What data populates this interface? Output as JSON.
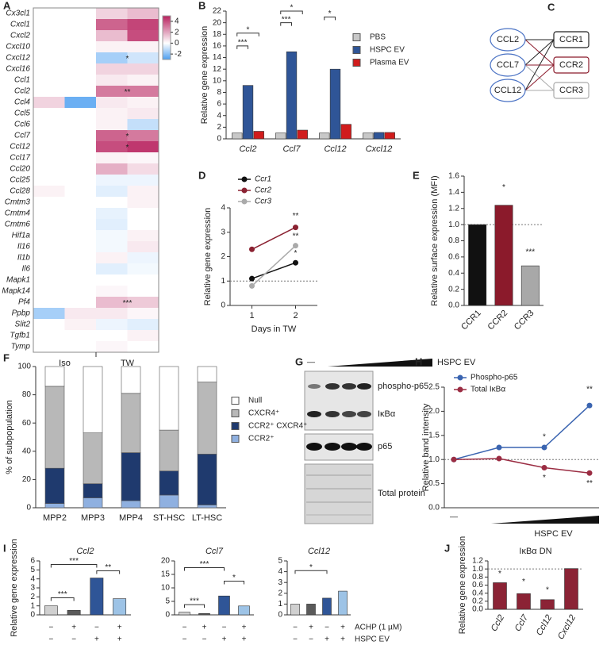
{
  "chart_data": [
    {
      "panel": "A",
      "type": "heatmap",
      "rows": [
        "Cx3cl1",
        "Cxcl1",
        "Cxcl2",
        "Cxcl10",
        "Cxcl12",
        "Cxcl16",
        "Ccl1",
        "Ccl2",
        "Ccl4",
        "Ccl5",
        "Ccl6",
        "Ccl7",
        "Ccl12",
        "Ccl17",
        "Ccl20",
        "Ccl25",
        "Ccl28",
        "Cmtm3",
        "Cmtm4",
        "Cmtm6",
        "Hif1a",
        "Il16",
        "Il1b",
        "Il6",
        "Mapk1",
        "Mapk14",
        "Pf4",
        "Ppbp",
        "Slit2",
        "Tgfb1",
        "Tymp"
      ],
      "groups": [
        "Iso",
        "TW"
      ],
      "values": [
        [
          0,
          0,
          1,
          1.5
        ],
        [
          0,
          0,
          3.5,
          4.2
        ],
        [
          0,
          0,
          1.5,
          4
        ],
        [
          0,
          0,
          0.3,
          0.3
        ],
        [
          0,
          0,
          -1.5,
          -0.8
        ],
        [
          0,
          0,
          1,
          1
        ],
        [
          0,
          0,
          0.5,
          0.3
        ],
        [
          0,
          0,
          3,
          3
        ],
        [
          1,
          -2.5,
          0.5,
          0.3
        ],
        [
          0,
          0,
          0.3,
          0.5
        ],
        [
          0,
          0,
          0.3,
          -1
        ],
        [
          0,
          0,
          3.5,
          3
        ],
        [
          0,
          0,
          4,
          4.5
        ],
        [
          0,
          0,
          0.3,
          0.2
        ],
        [
          0,
          0,
          1.8,
          0.8
        ],
        [
          0,
          0,
          -0.3,
          -0.3
        ],
        [
          0.3,
          0,
          -0.5,
          0.3
        ],
        [
          0,
          0,
          0,
          0.3
        ],
        [
          0,
          0,
          -0.4,
          0
        ],
        [
          0,
          0,
          -0.5,
          0
        ],
        [
          0,
          0,
          -0.2,
          0.3
        ],
        [
          0,
          0,
          -0.2,
          0.5
        ],
        [
          0,
          0,
          0.3,
          -0.3
        ],
        [
          0,
          0,
          -0.5,
          -0.2
        ],
        [
          0,
          0,
          0,
          0
        ],
        [
          0,
          0,
          0.2,
          0
        ],
        [
          0,
          0,
          1.5,
          1.2
        ],
        [
          -1.5,
          0.5,
          0.5,
          0.2
        ],
        [
          0,
          0.3,
          -0.3,
          -0.5
        ],
        [
          0,
          0,
          0,
          0.3
        ],
        [
          0,
          0,
          0.2,
          0
        ]
      ],
      "zlim": [
        -3,
        5
      ],
      "zticks": [
        4,
        2,
        0,
        -2
      ],
      "colors": {
        "low": "#4d9ff0",
        "mid": "#ffffff",
        "high": "#b8215e"
      },
      "annotations": [
        "*",
        "**",
        "*",
        "*",
        "***"
      ]
    },
    {
      "panel": "B",
      "type": "bar",
      "ylabel": "Relative gene expression",
      "categories": [
        "Ccl2",
        "Ccl7",
        "Ccl12",
        "Cxcl12"
      ],
      "series": [
        {
          "name": "PBS",
          "color": "#c8c8c8",
          "values": [
            1,
            1,
            1,
            1
          ]
        },
        {
          "name": "HSPC EV",
          "color": "#2f5597",
          "values": [
            9.2,
            15,
            12,
            1.1
          ]
        },
        {
          "name": "Plasma EV",
          "color": "#d01c1c",
          "values": [
            1.3,
            1.5,
            2.5,
            1.1
          ]
        }
      ],
      "ylim": [
        0,
        22
      ],
      "yticks": [
        0,
        2,
        4,
        6,
        8,
        10,
        12,
        14,
        16,
        18,
        20,
        22
      ],
      "legend": "top-right",
      "annotations": [
        "***",
        "*",
        "***",
        "*",
        "*"
      ]
    },
    {
      "panel": "C",
      "type": "diagram",
      "sources": [
        "CCL2",
        "CCL7",
        "CCL12"
      ],
      "targets": [
        "CCR1",
        "CCR2",
        "CCR3"
      ],
      "source_color": "#4a72c4",
      "target_colors": [
        "#222222",
        "#8b1a2b",
        "#aaaaaa"
      ]
    },
    {
      "panel": "D",
      "type": "line",
      "ylabel": "Relative gene expression",
      "xlabel": "Days in TW",
      "x": [
        1,
        2
      ],
      "xlim": [
        0.5,
        2.5
      ],
      "xticks": [
        1,
        2
      ],
      "ylim": [
        0,
        4
      ],
      "yticks": [
        0,
        1,
        2,
        3,
        4
      ],
      "reference_line": 1,
      "series": [
        {
          "name": "Ccr1",
          "color": "#111111",
          "values": [
            1.1,
            1.75
          ]
        },
        {
          "name": "Ccr2",
          "color": "#8b2232",
          "values": [
            2.3,
            3.2
          ]
        },
        {
          "name": "Ccr3",
          "color": "#aaaaaa",
          "values": [
            0.8,
            2.45
          ]
        }
      ],
      "annotations": [
        "**",
        "**",
        "*"
      ]
    },
    {
      "panel": "E",
      "type": "bar",
      "ylabel": "Relative surface expression (MFI)",
      "categories": [
        "CCR1",
        "CCR2",
        "CCR3"
      ],
      "values": [
        1,
        1.24,
        0.49
      ],
      "colors": [
        "#111111",
        "#8b1a2b",
        "#a8a8a8"
      ],
      "ylim": [
        0,
        1.6
      ],
      "yticks": [
        {
          "value": 0,
          "label": "0.0"
        },
        0.2,
        0.4,
        0.6,
        0.8,
        {
          "value": 1,
          "label": "1.0"
        },
        1.2,
        1.4,
        1.6
      ],
      "reference_line": 1,
      "annotations": [
        "*",
        "***"
      ]
    },
    {
      "panel": "F",
      "type": "bar",
      "stacked": true,
      "ylabel": "% of subpopulation",
      "categories": [
        "MPP2",
        "MPP3",
        "MPP4",
        "ST-HSC",
        "LT-HSC"
      ],
      "series": [
        {
          "name": "CCR2⁺",
          "color": "#8fb0e0",
          "values": [
            3,
            7,
            5,
            9,
            2
          ]
        },
        {
          "name": "CCR2⁺ CXCR4⁺",
          "color": "#1f3a6e",
          "values": [
            25,
            10,
            34,
            17,
            36
          ]
        },
        {
          "name": "CXCR4⁺",
          "color": "#b8b8b8",
          "values": [
            58,
            36,
            42,
            29,
            51
          ]
        },
        {
          "name": "Null",
          "color": "#ffffff",
          "values": [
            14,
            47,
            19,
            45,
            11
          ]
        }
      ],
      "ylim": [
        0,
        100
      ],
      "yticks": [
        0,
        20,
        40,
        60,
        80,
        100
      ],
      "legend": "right"
    },
    {
      "panel": "G",
      "type": "blot",
      "control_label": "—",
      "treatment": "HSPC EV",
      "rows": [
        "phospho-p65",
        "IκBα",
        "p65",
        "Total protein"
      ]
    },
    {
      "panel": "H",
      "type": "line",
      "ylabel": "Relative band intensity",
      "xlabel": "HSPC EV",
      "control_label": "—",
      "categories": [
        null,
        null,
        null,
        null
      ],
      "ylim": [
        0,
        2.5
      ],
      "yticks": [
        {
          "value": 0,
          "label": "0.0"
        },
        0.5,
        {
          "value": 1,
          "label": "1.0"
        },
        1.5,
        {
          "value": 2,
          "label": "2.0"
        },
        2.5
      ],
      "reference_line": 1,
      "series": [
        {
          "name": "Phospho-p65",
          "color": "#3a64b0",
          "values": [
            1,
            1.25,
            1.25,
            2.12
          ]
        },
        {
          "name": "Total IκBα",
          "color": "#9b2d43",
          "values": [
            1,
            1.02,
            0.83,
            0.72
          ]
        }
      ],
      "annotations": [
        "*",
        "**",
        "*",
        "**"
      ]
    },
    {
      "panel": "I",
      "type": "bar",
      "title": "Ccl2",
      "ylabel": "Relative gene expression",
      "categories": [
        null,
        null,
        null,
        null
      ],
      "values": [
        1,
        0.5,
        4.1,
        1.8
      ],
      "colors": [
        "#d0d0d0",
        "#5a5a5a",
        "#2f5597",
        "#9dc3e6"
      ],
      "ylim": [
        0,
        6
      ],
      "yticks": [
        0,
        1,
        2,
        3,
        4,
        5,
        6
      ],
      "conditions": [
        [
          "−",
          "+",
          "−",
          "+"
        ],
        [
          "−",
          "−",
          "+",
          "+"
        ]
      ],
      "annotations": [
        "***",
        "***",
        "**"
      ]
    },
    {
      "type": "bar",
      "title": "Ccl7",
      "categories": [
        null,
        null,
        null,
        null
      ],
      "values": [
        1,
        0.5,
        7,
        3.3
      ],
      "colors": [
        "#d0d0d0",
        "#5a5a5a",
        "#2f5597",
        "#9dc3e6"
      ],
      "ylim": [
        0,
        20
      ],
      "yticks": [
        0,
        5,
        10,
        15,
        20
      ],
      "conditions": [
        [
          "−",
          "+",
          "−",
          "+"
        ],
        [
          "−",
          "−",
          "+",
          "+"
        ]
      ],
      "annotations": [
        "***",
        "***",
        "*"
      ]
    },
    {
      "type": "bar",
      "title": "Ccl12",
      "categories": [
        null,
        null,
        null,
        null
      ],
      "values": [
        1,
        1,
        1.55,
        2.2
      ],
      "colors": [
        "#d0d0d0",
        "#5a5a5a",
        "#2f5597",
        "#9dc3e6"
      ],
      "ylim": [
        0,
        5
      ],
      "yticks": [
        0,
        1,
        2,
        3,
        4,
        5
      ],
      "conditions": [
        [
          "−",
          "+",
          "−",
          "+"
        ],
        [
          "−",
          "−",
          "+",
          "+"
        ]
      ],
      "condition_names": [
        "ACHP (1 µM)",
        "HSPC EV"
      ],
      "annotations": [
        "*"
      ]
    },
    {
      "panel": "J",
      "type": "bar",
      "title": "IκBα DN",
      "ylabel": "Relative gene expression",
      "categories": [
        "Ccl2",
        "Ccl7",
        "Ccl12",
        "Cxcl12"
      ],
      "values": [
        0.66,
        0.39,
        0.24,
        1.01
      ],
      "color": "#8b2335",
      "ylim": [
        0,
        1.2
      ],
      "yticks": [
        {
          "value": 0,
          "label": "0.0"
        },
        0.2,
        0.4,
        0.6,
        0.8,
        {
          "value": 1,
          "label": "1.0"
        },
        1.2
      ],
      "reference_line": 1,
      "annotations": [
        "*",
        "*",
        "*"
      ]
    }
  ]
}
